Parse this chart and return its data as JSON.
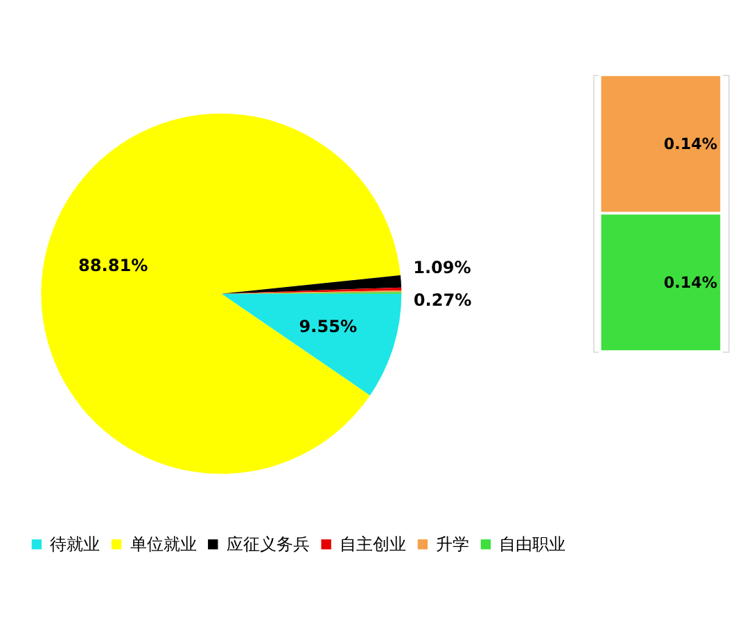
{
  "chart_data": [
    {
      "type": "pie",
      "categories": [
        "待就业",
        "单位就业",
        "应征义务兵",
        "自主创业",
        "升学",
        "自由职业"
      ],
      "values": [
        9.55,
        88.81,
        1.09,
        0.27,
        0.14,
        0.14
      ],
      "colors": [
        "#1ee6e6",
        "#ffff00",
        "#000000",
        "#e60000",
        "#f5a04a",
        "#3ede3e"
      ],
      "value_labels": [
        "9.55%",
        "88.81%",
        "1.09%",
        "0.27%",
        null,
        null
      ],
      "legend": "bottom"
    },
    {
      "type": "bar",
      "stacked": true,
      "categories": [
        null
      ],
      "series": [
        {
          "color": "#f5a04a",
          "values": [
            0.14
          ],
          "value_labels": [
            "0.14%"
          ]
        },
        {
          "color": "#3ede3e",
          "values": [
            0.14
          ],
          "value_labels": [
            "0.14%"
          ]
        }
      ]
    }
  ]
}
